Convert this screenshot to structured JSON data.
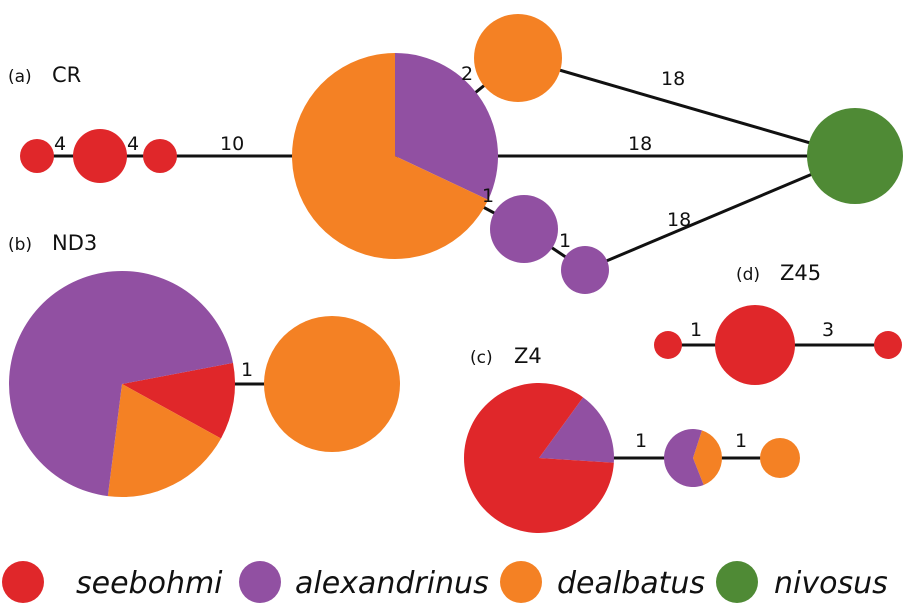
{
  "colors": {
    "seebohmi": "#e0272a",
    "alexandrinus": "#9150a2",
    "dealbatus": "#f48124",
    "nivosus": "#4f8a35"
  },
  "legend": [
    {
      "key": "seebohmi",
      "label": "seebohmi"
    },
    {
      "key": "alexandrinus",
      "label": "alexandrinus"
    },
    {
      "key": "dealbatus",
      "label": "dealbatus"
    },
    {
      "key": "nivosus",
      "label": "nivosus"
    }
  ],
  "panels": {
    "cr": {
      "letter": "(a)",
      "name": "CR"
    },
    "nd3": {
      "letter": "(b)",
      "name": "ND3"
    },
    "z4": {
      "letter": "(c)",
      "name": "Z4"
    },
    "z45": {
      "letter": "(d)",
      "name": "Z45"
    }
  },
  "networks": {
    "cr": {
      "edges": [
        {
          "label": "4"
        },
        {
          "label": "4"
        },
        {
          "label": "10"
        },
        {
          "label": "2"
        },
        {
          "label": "18"
        },
        {
          "label": "18"
        },
        {
          "label": "1"
        },
        {
          "label": "1"
        },
        {
          "label": "18"
        }
      ],
      "nodes": [
        {
          "slices": [
            {
              "species": "seebohmi",
              "value": 1
            }
          ]
        },
        {
          "slices": [
            {
              "species": "seebohmi",
              "value": 1
            }
          ]
        },
        {
          "slices": [
            {
              "species": "seebohmi",
              "value": 1
            }
          ]
        },
        {
          "slices": [
            {
              "species": "alexandrinus",
              "value": 0.32
            },
            {
              "species": "dealbatus",
              "value": 0.68
            }
          ]
        },
        {
          "slices": [
            {
              "species": "dealbatus",
              "value": 1
            }
          ]
        },
        {
          "slices": [
            {
              "species": "alexandrinus",
              "value": 1
            }
          ]
        },
        {
          "slices": [
            {
              "species": "alexandrinus",
              "value": 1
            }
          ]
        },
        {
          "slices": [
            {
              "species": "nivosus",
              "value": 1
            }
          ]
        }
      ]
    },
    "nd3": {
      "edges": [
        {
          "label": "1"
        }
      ],
      "nodes": [
        {
          "slices": [
            {
              "species": "seebohmi",
              "value": 0.11
            },
            {
              "species": "dealbatus",
              "value": 0.19
            },
            {
              "species": "alexandrinus",
              "value": 0.7
            }
          ]
        },
        {
          "slices": [
            {
              "species": "dealbatus",
              "value": 1
            }
          ]
        }
      ]
    },
    "z4": {
      "edges": [
        {
          "label": "1"
        },
        {
          "label": "1"
        }
      ],
      "nodes": [
        {
          "slices": [
            {
              "species": "alexandrinus",
              "value": 0.16
            },
            {
              "species": "seebohmi",
              "value": 0.84
            }
          ]
        },
        {
          "slices": [
            {
              "species": "dealbatus",
              "value": 0.39
            },
            {
              "species": "alexandrinus",
              "value": 0.61
            }
          ]
        },
        {
          "slices": [
            {
              "species": "dealbatus",
              "value": 1
            }
          ]
        }
      ]
    },
    "z45": {
      "edges": [
        {
          "label": "1"
        },
        {
          "label": "3"
        }
      ],
      "nodes": [
        {
          "slices": [
            {
              "species": "seebohmi",
              "value": 1
            }
          ]
        },
        {
          "slices": [
            {
              "species": "seebohmi",
              "value": 1
            }
          ]
        },
        {
          "slices": [
            {
              "species": "seebohmi",
              "value": 1
            }
          ]
        }
      ]
    }
  }
}
